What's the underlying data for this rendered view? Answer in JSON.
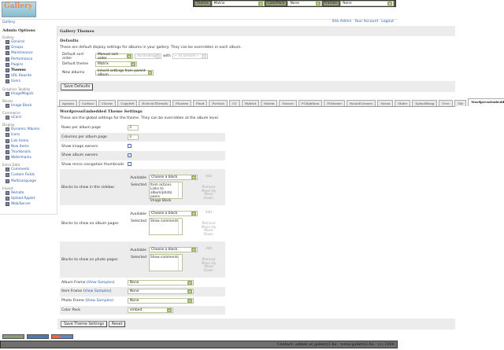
{
  "topbar": {
    "theme_label": "Theme:",
    "theme_value": "Matrix",
    "colorpack_label": "ColorPack:",
    "colorpack_value": "None",
    "frames_label": "Frames:",
    "frames_value": "None"
  },
  "logo_text": "Gallery",
  "breadcrumb": "Gallery",
  "user_links": [
    "Site Admin",
    "Your Account",
    "Logout"
  ],
  "sidebar": {
    "title": "Admin Options",
    "groups": [
      {
        "name": "Gallery",
        "items": [
          "General",
          "Groups",
          "Maintenance",
          "Performance",
          "Plugins",
          "Themes",
          "URL Rewrite",
          "Users"
        ]
      },
      {
        "name": "Graphics Toolkits",
        "items": [
          "ImageMagick"
        ]
      },
      {
        "name": "Blocks",
        "items": [
          "Image Block"
        ]
      },
      {
        "name": "Commerce",
        "items": [
          "eCard"
        ]
      },
      {
        "name": "Display",
        "items": [
          "Dynamic Albums",
          "Icons",
          "Link Items",
          "New Items",
          "Thumbnails",
          "Watermarks"
        ]
      },
      {
        "name": "Extra Data",
        "items": [
          "Comments",
          "Custom Fields",
          "MultiLanguage"
        ]
      },
      {
        "name": "Import",
        "items": [
          "Remote",
          "Upload Applet",
          "Web/Server"
        ]
      }
    ],
    "current": "Themes"
  },
  "main": {
    "title": "Gallery Themes",
    "defaults_heading": "Defaults",
    "defaults_desc": "These are default display settings for albums in your gallery. They can be overridden in each album.",
    "sort_label": "Default sort order",
    "sort_value": "Manual sort order",
    "sort_dir": "Ascending",
    "with_label": "with",
    "with_value": "« no presort »",
    "theme_label": "Default theme",
    "theme_value": "Matrix",
    "new_albums_label": "New albums",
    "new_albums_value": "Inherit settings from parent album",
    "save_defaults": "Save Defaults"
  },
  "tabs": [
    "Ajaxian",
    "Carbon",
    "Classic",
    "Copyleft",
    "EclecticThreads",
    "Floatrix",
    "Fluid",
    "ForSale",
    "G1",
    "Hybrid",
    "Matrix",
    "Nature",
    "PGlightbox",
    "PGtheme",
    "RoundCorners",
    "Siriux",
    "Slider",
    "SplashBang",
    "Tree",
    "Tile",
    "WordpressEmbedded"
  ],
  "active_tab": "WordpressEmbedded",
  "settings": {
    "heading": "WordpressEmbedded Theme Settings",
    "desc": "These are the global settings for the theme. They can be overridden at the album level.",
    "rows_label": "Rows per album page",
    "rows_value": "3",
    "cols_label": "Columns per album page",
    "cols_value": "3",
    "image_owners_label": "Show image owners",
    "image_owners": false,
    "album_owners_label": "Show album owners",
    "album_owners": true,
    "micro_label": "Show micro navigation thumbnails",
    "micro": false,
    "available_label": "Available",
    "selected_label": "Selected",
    "choose": "Choose a block",
    "add": "Add",
    "remove": "Remove",
    "move_up": "Move Up",
    "move_down": "Move Down",
    "sidebar_blocks_label": "Blocks to show in the sidebar",
    "sidebar_blocks": [
      "Item actions",
      "Links to album/photo peers",
      "Image Block"
    ],
    "album_blocks_label": "Blocks to show on album pages",
    "album_blocks": [
      "Show comments"
    ],
    "photo_blocks_label": "Blocks to show on photo pages",
    "photo_blocks": [
      "Show comments"
    ],
    "album_frame_label": "Album Frame",
    "item_frame_label": "Item Frame",
    "photo_frame_label": "Photo Frame",
    "view_samples": "View Samples",
    "album_frame": "None",
    "item_frame": "None",
    "photo_frame": "None",
    "colorpack_label": "Color Pack",
    "colorpack": "embed",
    "save": "Save Theme Settings",
    "reset": "Reset"
  },
  "footer": "Contact: admin at gallery2.hu - www.gallery2.hu - (c) 2006"
}
